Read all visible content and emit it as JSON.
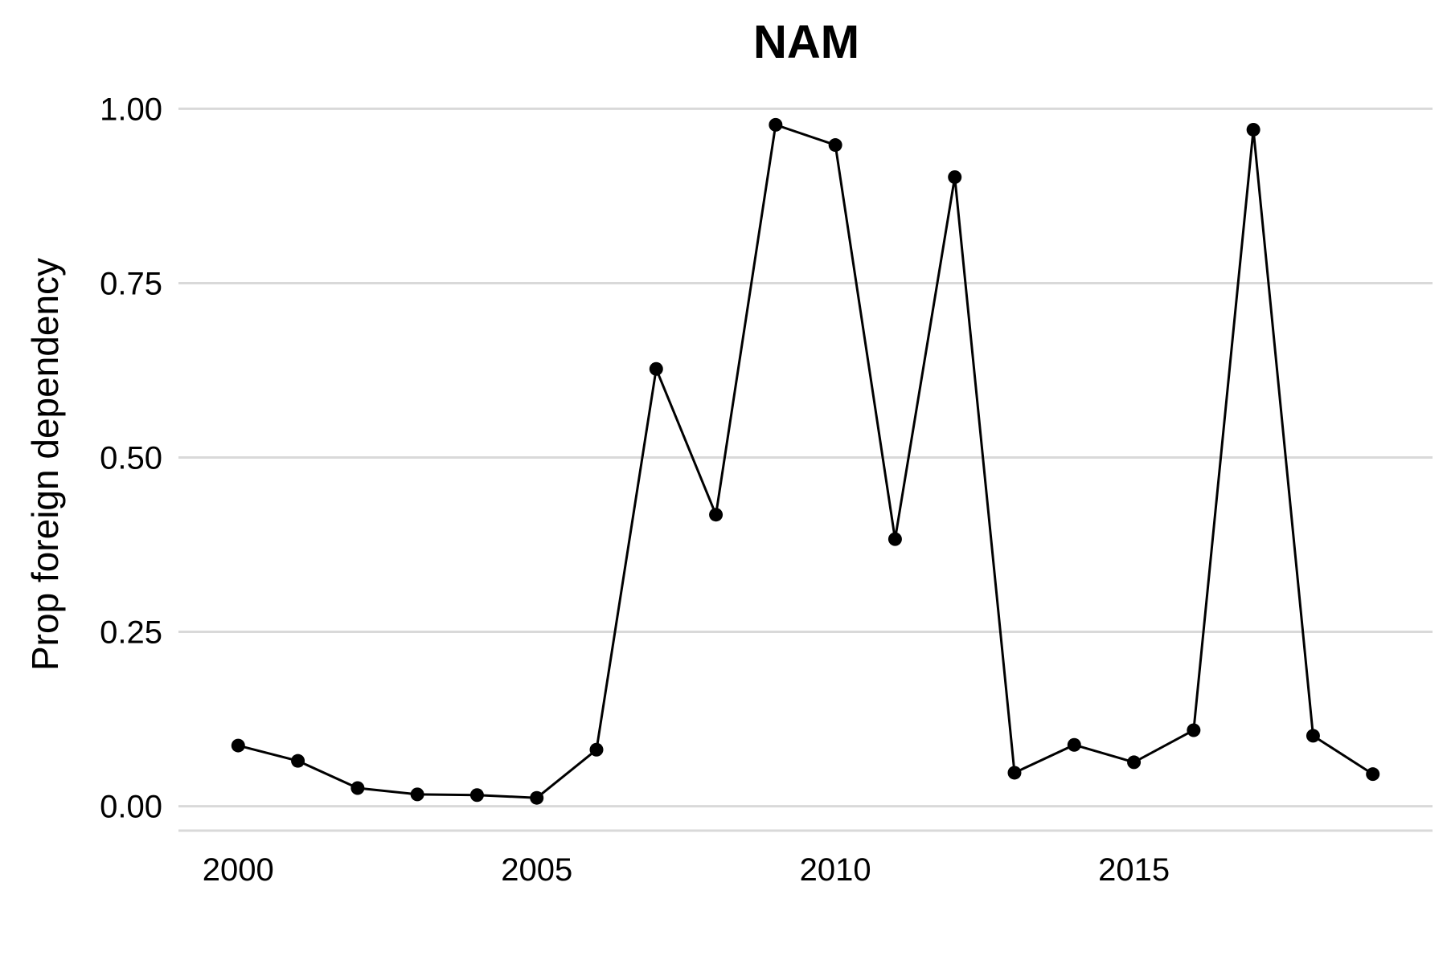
{
  "chart_data": {
    "type": "line",
    "title": "NAM",
    "xlabel": "",
    "ylabel": "Prop foreign dependency",
    "xlim": [
      1999,
      2020
    ],
    "ylim": [
      -0.035,
      1.05
    ],
    "x_ticks": [
      2000,
      2005,
      2010,
      2015
    ],
    "x_tick_labels": [
      "2000",
      "2005",
      "2010",
      "2015"
    ],
    "y_ticks": [
      0,
      0.25,
      0.5,
      0.75,
      1
    ],
    "y_tick_labels": [
      "0.00",
      "0.25",
      "0.50",
      "0.75",
      "1.00"
    ],
    "grid": true,
    "series": [
      {
        "color": "#000000",
        "x": [
          2000,
          2001,
          2002,
          2003,
          2004,
          2005,
          2006,
          2007,
          2008,
          2009,
          2010,
          2011,
          2012,
          2013,
          2014,
          2015,
          2016,
          2017,
          2018,
          2019
        ],
        "y": [
          0.087,
          0.065,
          0.026,
          0.017,
          0.016,
          0.012,
          0.081,
          0.627,
          0.418,
          0.977,
          0.948,
          0.383,
          0.902,
          0.048,
          0.088,
          0.063,
          0.109,
          0.97,
          0.101,
          0.046
        ]
      }
    ]
  }
}
